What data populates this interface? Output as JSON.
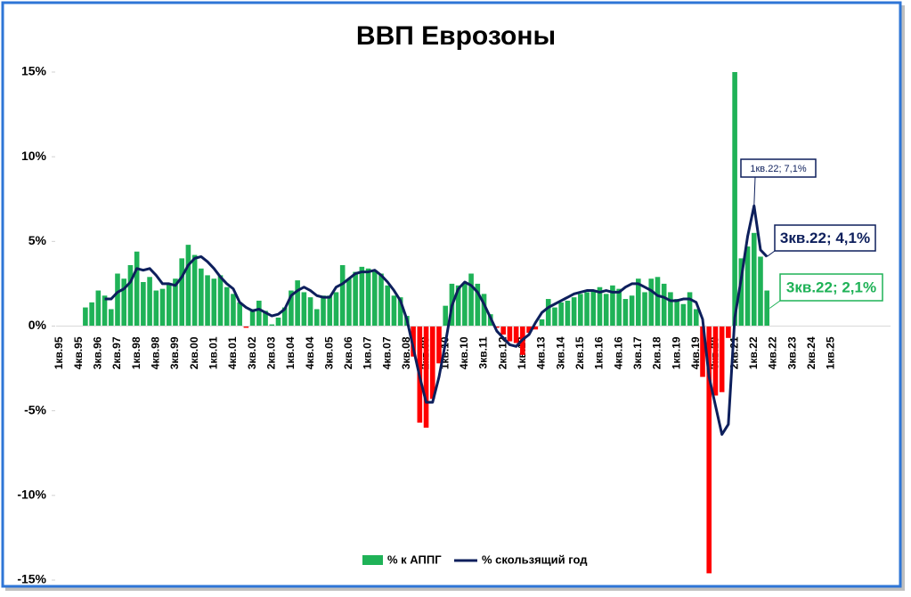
{
  "chart_data": {
    "type": "bar-line",
    "title": "ВВП Еврозоны",
    "categories": [
      "1кв.95",
      null,
      null,
      "4кв.95",
      null,
      null,
      "3кв.96",
      null,
      null,
      "2кв.97",
      null,
      null,
      "1кв.98",
      null,
      null,
      "4кв.98",
      null,
      null,
      "3кв.99",
      null,
      null,
      "2кв.00",
      null,
      null,
      "1кв.01",
      null,
      null,
      "4кв.01",
      null,
      null,
      "3кв.02",
      null,
      null,
      "2кв.03",
      null,
      null,
      "1кв.04",
      null,
      null,
      "4кв.04",
      null,
      null,
      "3кв.05",
      null,
      null,
      "2кв.06",
      null,
      null,
      "1кв.07",
      null,
      null,
      "4кв.07",
      null,
      null,
      "3кв.08",
      null,
      null,
      "2кв.09",
      null,
      null,
      "1кв.10",
      null,
      null,
      "4кв.10",
      null,
      null,
      "3кв.11",
      null,
      null,
      "2кв.12",
      null,
      null,
      "1кв.13",
      null,
      null,
      "4кв.13",
      null,
      null,
      "3кв.14",
      null,
      null,
      "2кв.15",
      null,
      null,
      "1кв.16",
      null,
      null,
      "4кв.16",
      null,
      null,
      "3кв.17",
      null,
      null,
      "2кв.18",
      null,
      null,
      "1кв.19",
      null,
      null,
      "4кв.19",
      null,
      null,
      "3кв.20",
      null,
      null,
      "2кв.21",
      null,
      null,
      "1кв.22",
      null,
      null,
      "4кв.22",
      null,
      null,
      "3кв.23",
      null,
      null,
      "2кв.24",
      null,
      null,
      "1кв.25"
    ],
    "series": [
      {
        "name": "% к АППГ",
        "type": "bar",
        "color": "#1fb257",
        "negative_color": "#ff0000",
        "values": [
          null,
          null,
          null,
          null,
          1.1,
          1.4,
          2.1,
          1.8,
          1.0,
          3.1,
          2.8,
          3.6,
          4.4,
          2.6,
          2.9,
          2.1,
          2.2,
          2.5,
          2.8,
          4.0,
          4.8,
          4.2,
          3.4,
          3.0,
          2.8,
          3.0,
          2.3,
          1.9,
          1.4,
          -0.1,
          1.0,
          1.5,
          0.9,
          0.1,
          0.5,
          1.1,
          2.1,
          2.7,
          2.0,
          1.7,
          1.0,
          1.8,
          1.8,
          2.0,
          3.6,
          2.8,
          3.2,
          3.5,
          3.4,
          3.3,
          3.1,
          2.4,
          1.8,
          1.7,
          0.6,
          -1.8,
          -5.7,
          -6.0,
          -4.3,
          -2.2,
          1.2,
          2.5,
          2.4,
          2.5,
          3.1,
          2.5,
          1.9,
          0.7,
          -0.1,
          -0.5,
          -0.9,
          -1.0,
          -1.7,
          -0.4,
          -0.2,
          0.4,
          1.6,
          1.1,
          1.4,
          1.5,
          1.7,
          1.9,
          2.0,
          2.1,
          2.3,
          1.9,
          2.4,
          2.2,
          1.6,
          1.8,
          2.8,
          2.0,
          2.8,
          2.9,
          2.5,
          2.0,
          1.6,
          1.3,
          2.0,
          1.0,
          -3.0,
          -14.6,
          -4.1,
          -3.9,
          -0.7,
          15.0,
          4.0,
          4.7,
          5.5,
          4.1,
          2.1,
          null,
          null,
          null,
          null,
          null,
          null,
          null,
          null,
          null,
          null
        ]
      },
      {
        "name": "% скользящий год",
        "type": "line",
        "color": "#0d1f5c",
        "values": [
          null,
          null,
          null,
          null,
          null,
          null,
          null,
          1.6,
          1.6,
          2.0,
          2.2,
          2.6,
          3.4,
          3.3,
          3.4,
          3.0,
          2.5,
          2.5,
          2.4,
          2.9,
          3.6,
          4.0,
          4.1,
          3.8,
          3.4,
          2.9,
          2.5,
          2.2,
          1.4,
          1.1,
          0.9,
          1.0,
          0.8,
          0.6,
          0.7,
          1.0,
          1.8,
          2.1,
          2.3,
          2.1,
          1.8,
          1.7,
          1.7,
          2.3,
          2.5,
          2.8,
          3.1,
          3.2,
          3.2,
          3.3,
          3.0,
          2.6,
          2.1,
          1.5,
          0.4,
          -1.3,
          -3.0,
          -4.5,
          -4.5,
          -3.0,
          -1.0,
          1.2,
          2.2,
          2.6,
          2.4,
          2.0,
          1.3,
          0.5,
          -0.3,
          -0.7,
          -1.1,
          -1.2,
          -0.8,
          -0.5,
          0.2,
          0.8,
          1.1,
          1.3,
          1.5,
          1.7,
          1.9,
          2.0,
          2.1,
          2.1,
          2.0,
          2.1,
          2.0,
          2.0,
          2.3,
          2.5,
          2.5,
          2.3,
          2.1,
          1.8,
          1.7,
          1.5,
          1.5,
          1.6,
          1.6,
          1.4,
          0.4,
          -3.0,
          -4.7,
          -6.4,
          -5.8,
          0.5,
          2.8,
          5.3,
          7.1,
          4.5,
          4.1,
          null,
          null,
          null,
          null,
          null,
          null,
          null,
          null,
          null,
          null
        ]
      }
    ],
    "ylim": [
      -15,
      15
    ],
    "yticks": [
      {
        "value": -15,
        "label": "-15%"
      },
      {
        "value": -10,
        "label": "-10%"
      },
      {
        "value": -5,
        "label": "-5%"
      },
      {
        "value": 0,
        "label": "0%"
      },
      {
        "value": 5,
        "label": "5%"
      },
      {
        "value": 10,
        "label": "10%"
      },
      {
        "value": 15,
        "label": "15%"
      }
    ],
    "annotations": [
      {
        "text": "1кв.22; 7,1%"
      },
      {
        "text": "3кв.22; 4,1%"
      },
      {
        "text": "3кв.22; 2,1%"
      }
    ],
    "legend": "bottom"
  }
}
